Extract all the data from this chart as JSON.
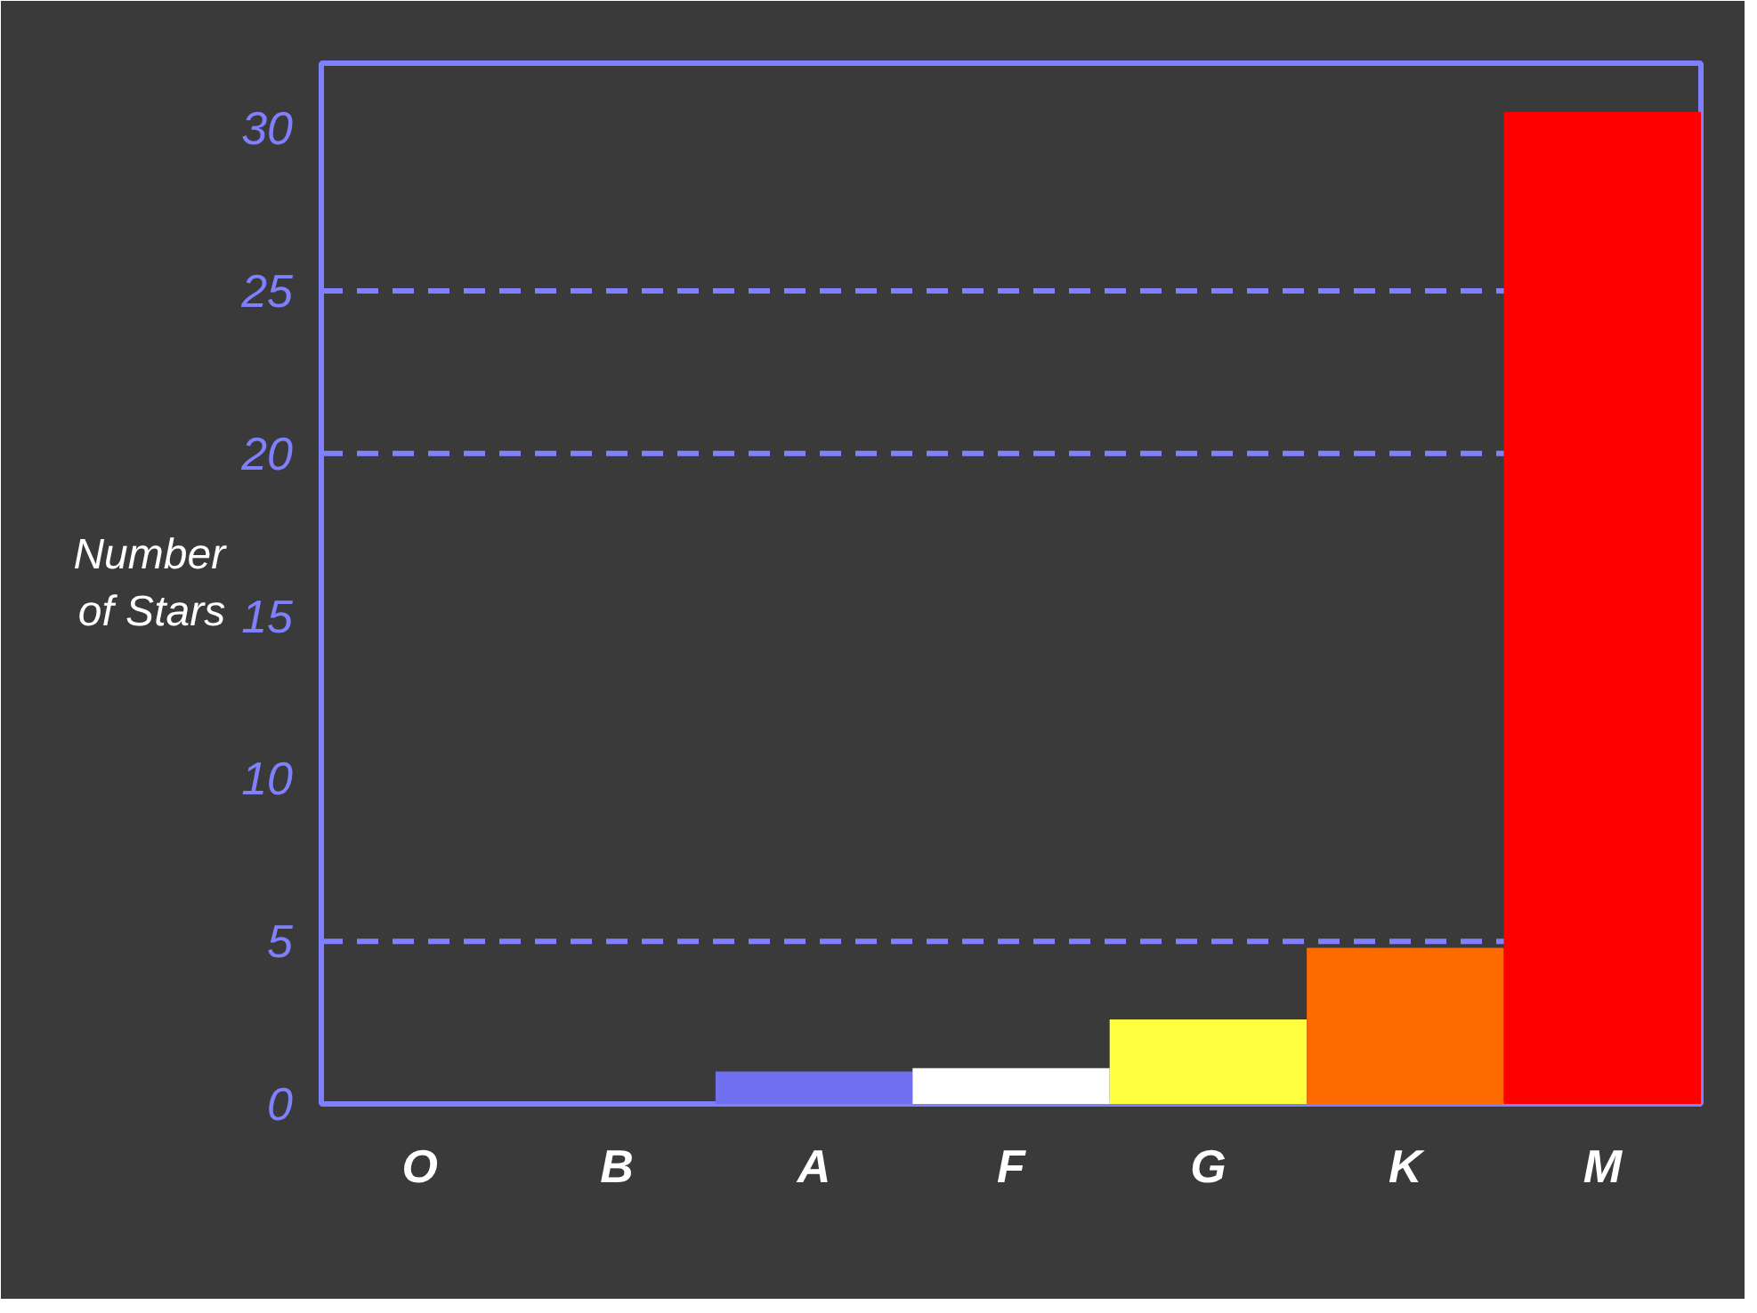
{
  "chart_data": {
    "type": "bar",
    "ylabel": "Number of Stars",
    "categories": [
      "O",
      "B",
      "A",
      "F",
      "G",
      "K",
      "M"
    ],
    "values": [
      0,
      0,
      1.0,
      1.1,
      2.6,
      4.8,
      30.5
    ],
    "colors": [
      "#2a2aa0",
      "#5050e0",
      "#7070f0",
      "#ffffff",
      "#ffff40",
      "#ff6a00",
      "#ff0000"
    ],
    "ylim": [
      0,
      32
    ],
    "yticks": [
      0,
      5,
      10,
      15,
      20,
      25,
      30
    ],
    "grid": false,
    "ref_lines": [
      {
        "axis": "y",
        "value": 5,
        "color": "#8080ff",
        "line_style": "dashed"
      },
      {
        "axis": "y",
        "value": 20,
        "color": "#8080ff",
        "line_style": "dashed"
      },
      {
        "axis": "y",
        "value": 25,
        "color": "#8080ff",
        "line_style": "dashed"
      }
    ]
  }
}
